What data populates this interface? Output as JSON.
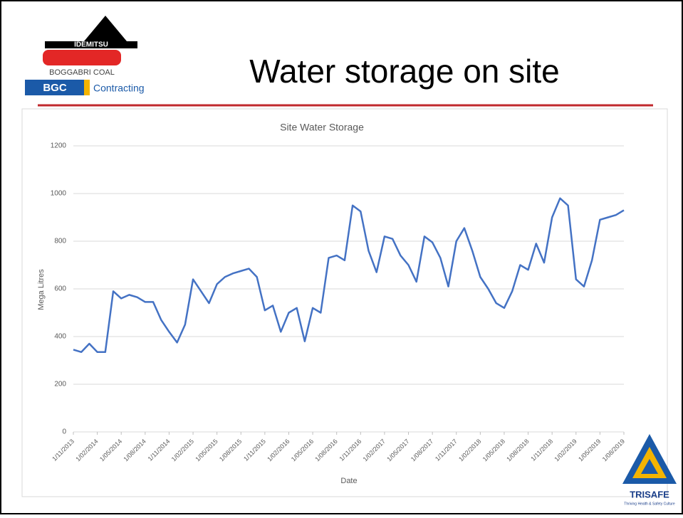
{
  "header": {
    "title": "Water storage on site",
    "logo": {
      "brand": "IDEMITSU",
      "site": "BOGGABRI COAL",
      "short": "BGC",
      "division": "Contracting"
    }
  },
  "footer_logo": {
    "name": "TRISAFE",
    "tagline": "Thriving Health & Safety Culture"
  },
  "chart_data": {
    "type": "line",
    "title": "Site Water Storage",
    "x_label": "Date",
    "y_label": "Mega Litres",
    "x": [
      "1/11/2013",
      "1/12/2013",
      "1/01/2014",
      "1/02/2014",
      "1/03/2014",
      "1/04/2014",
      "1/05/2014",
      "1/06/2014",
      "1/07/2014",
      "1/08/2014",
      "1/09/2014",
      "1/10/2014",
      "1/11/2014",
      "1/12/2014",
      "1/01/2015",
      "1/02/2015",
      "1/03/2015",
      "1/04/2015",
      "1/05/2015",
      "1/06/2015",
      "1/07/2015",
      "1/08/2015",
      "1/09/2015",
      "1/10/2015",
      "1/11/2015",
      "1/12/2015",
      "1/01/2016",
      "1/02/2016",
      "1/03/2016",
      "1/04/2016",
      "1/05/2016",
      "1/06/2016",
      "1/07/2016",
      "1/08/2016",
      "1/09/2016",
      "1/10/2016",
      "1/11/2016",
      "1/12/2016",
      "1/01/2017",
      "1/02/2017",
      "1/03/2017",
      "1/04/2017",
      "1/05/2017",
      "1/06/2017",
      "1/07/2017",
      "1/08/2017",
      "1/09/2017",
      "1/10/2017",
      "1/11/2017",
      "1/12/2017",
      "1/01/2018",
      "1/02/2018",
      "1/03/2018",
      "1/04/2018",
      "1/05/2018",
      "1/06/2018",
      "1/07/2018",
      "1/08/2018",
      "1/09/2018",
      "1/10/2018",
      "1/11/2018",
      "1/12/2018",
      "1/01/2019",
      "1/02/2019",
      "1/03/2019",
      "1/04/2019",
      "1/05/2019",
      "1/06/2019",
      "1/07/2019",
      "1/08/2019"
    ],
    "series": [
      {
        "name": "Site Water Storage",
        "color": "#4472c4",
        "values": [
          345,
          335,
          370,
          335,
          335,
          590,
          560,
          575,
          565,
          545,
          545,
          470,
          420,
          375,
          450,
          640,
          590,
          540,
          620,
          650,
          665,
          675,
          685,
          650,
          510,
          530,
          420,
          500,
          520,
          380,
          520,
          500,
          730,
          740,
          720,
          950,
          925,
          760,
          670,
          820,
          810,
          740,
          700,
          630,
          820,
          795,
          730,
          610,
          800,
          855,
          760,
          650,
          600,
          540,
          520,
          590,
          700,
          680,
          790,
          710,
          900,
          980,
          950,
          640,
          610,
          720,
          890,
          900,
          910,
          930
        ]
      }
    ],
    "xticks": [
      "1/11/2013",
      "1/02/2014",
      "1/05/2014",
      "1/08/2014",
      "1/11/2014",
      "1/02/2015",
      "1/05/2015",
      "1/08/2015",
      "1/11/2015",
      "1/02/2016",
      "1/05/2016",
      "1/08/2016",
      "1/11/2016",
      "1/02/2017",
      "1/05/2017",
      "1/08/2017",
      "1/11/2017",
      "1/02/2018",
      "1/05/2018",
      "1/08/2018",
      "1/11/2018",
      "1/02/2019",
      "1/05/2019",
      "1/08/2019"
    ],
    "ylim": [
      0,
      1200
    ],
    "yticks": [
      0,
      200,
      400,
      600,
      800,
      1000,
      1200
    ],
    "grid": true
  }
}
